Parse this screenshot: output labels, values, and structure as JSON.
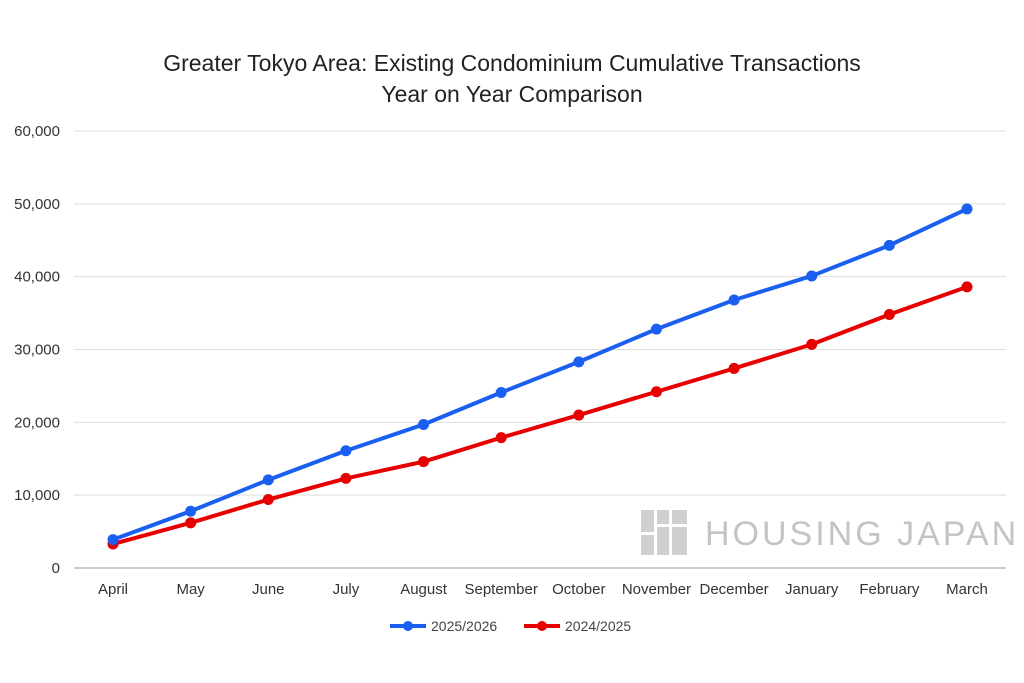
{
  "chart_data": {
    "type": "line",
    "title": "Greater Tokyo Area: Existing Condominium Cumulative Transactions",
    "subtitle": "Year on Year Comparison",
    "xlabel": "",
    "ylabel": "",
    "categories": [
      "April",
      "May",
      "June",
      "July",
      "August",
      "September",
      "October",
      "November",
      "December",
      "January",
      "February",
      "March"
    ],
    "y_ticks": [
      "0",
      "10,000",
      "20,000",
      "30,000",
      "40,000",
      "50,000",
      "60,000"
    ],
    "ylim": [
      0,
      60000
    ],
    "grid": true,
    "legend_position": "bottom",
    "series": [
      {
        "name": "2025/2026",
        "color": "#1a5ff0",
        "values": [
          3900,
          7800,
          12100,
          16100,
          19700,
          24100,
          28300,
          32800,
          36800,
          40100,
          44300,
          49300
        ]
      },
      {
        "name": "2024/2025",
        "color": "#e60000",
        "values": [
          3300,
          6200,
          9400,
          12300,
          14600,
          17900,
          21000,
          24200,
          27400,
          30700,
          34800,
          38600
        ]
      }
    ]
  },
  "watermark": {
    "text": "HOUSING JAPAN",
    "icon": "housing-japan-logo-icon"
  }
}
